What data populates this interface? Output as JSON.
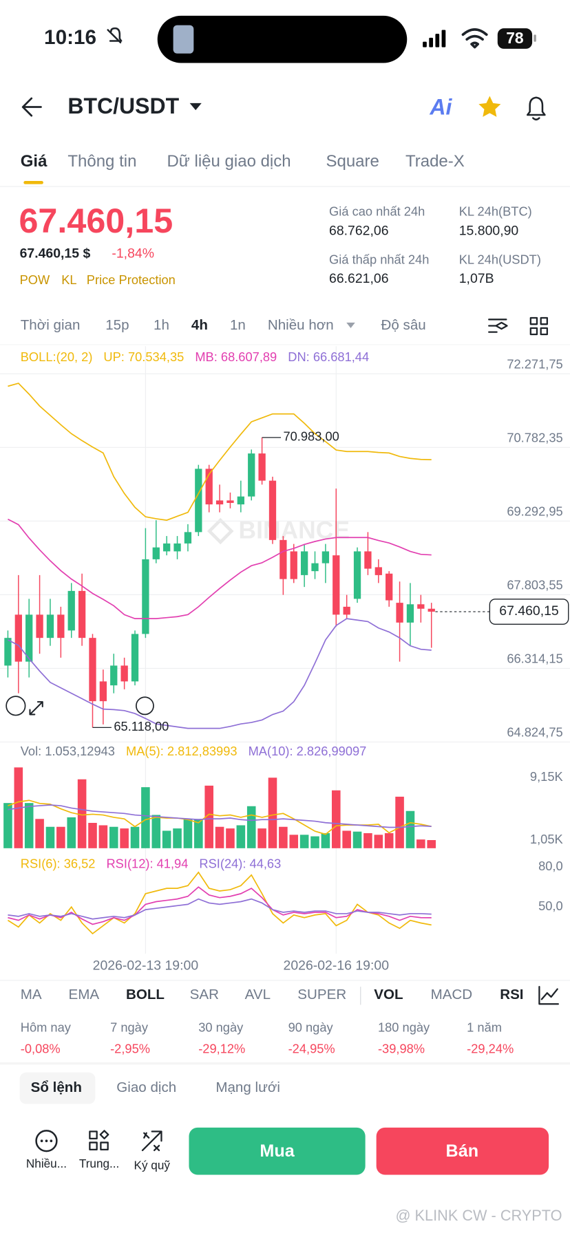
{
  "status_bar": {
    "time": "10:16",
    "battery": "78"
  },
  "header": {
    "title": "BTC/USDT",
    "ai": "Ai"
  },
  "tabs": [
    "Giá",
    "Thông tin",
    "Dữ liệu giao dịch",
    "Square",
    "Trade-X"
  ],
  "price": {
    "last": "67.460,15",
    "usd": "67.460,15 $",
    "change": "-1,84%",
    "tags": [
      "POW",
      "KL",
      "Price Protection"
    ]
  },
  "stats": [
    {
      "label": "Giá cao nhất 24h",
      "value": "68.762,06"
    },
    {
      "label": "KL 24h(BTC)",
      "value": "15.800,90"
    },
    {
      "label": "Giá thấp nhất 24h",
      "value": "66.621,06"
    },
    {
      "label": "KL 24h(USDT)",
      "value": "1,07B"
    }
  ],
  "intervals": [
    "Thời gian",
    "15p",
    "1h",
    "4h",
    "1n",
    "Nhiều hơn",
    "Độ sâu"
  ],
  "chart_data": [
    {
      "type": "candlestick",
      "indicator": "BOLL:(20, 2)",
      "indicator_color": "#f0b90b",
      "watermark": "BINANCE",
      "up_color": "#2ebd85",
      "down_color": "#f6465d",
      "grid": true,
      "ylim": [
        64777,
        72702
      ],
      "yticks": [
        {
          "value": 72271.75,
          "label": "72.271,75"
        },
        {
          "value": 70782.35,
          "label": "70.782,35"
        },
        {
          "value": 69292.95,
          "label": "69.292,95"
        },
        {
          "value": 67803.55,
          "label": "67.803,55"
        },
        {
          "value": 66314.15,
          "label": "66.314,15"
        },
        {
          "value": 64824.75,
          "label": "64.824,75"
        }
      ],
      "open": [
        66370,
        67400,
        66450,
        67400,
        66930,
        67400,
        67080,
        67880,
        66930,
        66050,
        65970,
        66370,
        66050,
        67010,
        68520,
        68680,
        68680,
        68840,
        69070,
        70350,
        69710,
        69710,
        69630,
        69790,
        70660,
        70110,
        68910,
        68680,
        68200,
        68280,
        68440,
        68600,
        67560,
        67720,
        68680,
        68360,
        68230,
        67640,
        67240,
        67610,
        67520
      ],
      "high": [
        67080,
        68200,
        67720,
        68200,
        67720,
        67560,
        68040,
        68230,
        67010,
        66290,
        66610,
        66530,
        67080,
        69150,
        69310,
        68990,
        68990,
        69230,
        70430,
        70430,
        70030,
        69870,
        70110,
        70740,
        70983,
        70190,
        68990,
        68830,
        68830,
        68680,
        68830,
        69950,
        67800,
        68760,
        69070,
        68520,
        68280,
        68070,
        68040,
        67800,
        67640
      ],
      "low": [
        66130,
        65810,
        66130,
        66610,
        66770,
        66530,
        66930,
        66770,
        65118,
        65180,
        65810,
        65890,
        65970,
        66930,
        68440,
        68600,
        68520,
        68680,
        68990,
        69470,
        69470,
        69550,
        69470,
        69710,
        70030,
        68830,
        67800,
        68040,
        67960,
        68120,
        68040,
        67160,
        67320,
        67640,
        68200,
        68040,
        67560,
        66450,
        66770,
        67240,
        66730
      ],
      "close": [
        66930,
        66450,
        67400,
        66930,
        67400,
        66930,
        67880,
        66930,
        65650,
        65650,
        66370,
        66050,
        67010,
        68520,
        68760,
        68840,
        68840,
        69070,
        70350,
        69630,
        69630,
        69660,
        69790,
        70660,
        70110,
        68910,
        68120,
        68120,
        68680,
        68440,
        68680,
        67400,
        67400,
        68680,
        68330,
        68200,
        67690,
        67240,
        67610,
        67520,
        67460.15
      ],
      "max_label": "70.983,00",
      "min_label": "65.118,00",
      "last_label": "67.460,15",
      "series": [
        {
          "name": "UP: 70.534,35",
          "type": "line",
          "color": "#f0b90b",
          "values": [
            72020,
            72080,
            71860,
            71620,
            71430,
            71240,
            71060,
            70920,
            70790,
            70670,
            70190,
            69850,
            69570,
            69380,
            69340,
            69310,
            69390,
            69470,
            69850,
            70240,
            70520,
            70790,
            71050,
            71300,
            71380,
            71460,
            71460,
            71460,
            71270,
            71060,
            70900,
            70730,
            70700,
            70700,
            70700,
            70680,
            70670,
            70600,
            70560,
            70540,
            70534.35
          ]
        },
        {
          "name": "MB: 68.607,89",
          "type": "line",
          "color": "#e23fb0",
          "values": [
            69330,
            69220,
            68950,
            68710,
            68490,
            68290,
            68120,
            67980,
            67830,
            67710,
            67580,
            67400,
            67320,
            67320,
            67320,
            67340,
            67360,
            67400,
            67560,
            67750,
            67930,
            68100,
            68260,
            68390,
            68450,
            68560,
            68680,
            68740,
            68820,
            68880,
            68930,
            68960,
            68960,
            68960,
            68960,
            68900,
            68850,
            68770,
            68680,
            68620,
            68607.89
          ]
        },
        {
          "name": "DN: 66.681,44",
          "type": "line",
          "color": "#8e6fd6",
          "values": [
            66890,
            66780,
            66510,
            66260,
            66030,
            65920,
            65810,
            65700,
            65590,
            65490,
            65480,
            65460,
            65400,
            65300,
            65190,
            65160,
            65130,
            65100,
            65100,
            65100,
            65100,
            65140,
            65190,
            65220,
            65270,
            65380,
            65450,
            65640,
            65970,
            66420,
            66890,
            67180,
            67320,
            67290,
            67260,
            67130,
            67050,
            66930,
            66770,
            66700,
            66681.44
          ]
        }
      ]
    },
    {
      "type": "bar",
      "grid": false,
      "ylim": [
        0,
        11000
      ],
      "yticks": [
        {
          "value": 9150,
          "label": "9,15K"
        },
        {
          "value": 1050,
          "label": "1,05K"
        }
      ],
      "series": [
        {
          "name": "Vol: 1.053,12943",
          "type": "bar",
          "values": [
            5850,
            10460,
            5850,
            3790,
            2770,
            2770,
            4000,
            8920,
            3280,
            2970,
            2770,
            2560,
            2770,
            7900,
            4310,
            2260,
            2560,
            3790,
            3790,
            8100,
            2770,
            2560,
            2970,
            5440,
            2560,
            9130,
            2770,
            1740,
            1740,
            1540,
            1950,
            7490,
            2260,
            2150,
            1950,
            1740,
            1950,
            6670,
            4820,
            1130,
            1053.12943
          ]
        },
        {
          "name": "MA(5): 2.812,83993",
          "type": "line",
          "color": "#f0b90b",
          "values": [
            5500,
            6000,
            6200,
            5800,
            5700,
            5100,
            4600,
            4300,
            4400,
            4300,
            4000,
            3800,
            2800,
            3700,
            4000,
            3900,
            3900,
            3700,
            3300,
            4400,
            4200,
            4300,
            4000,
            4300,
            4000,
            4300,
            4500,
            3800,
            3000,
            2200,
            1800,
            2900,
            3000,
            3000,
            3000,
            3100,
            2000,
            2700,
            3300,
            3100,
            2812.83993
          ]
        },
        {
          "name": "MA(10): 2.826,99097",
          "type": "line",
          "color": "#8e6fd6",
          "values": [
            5000,
            5200,
            5400,
            5500,
            5600,
            5500,
            5200,
            5000,
            4800,
            4700,
            4600,
            4500,
            4300,
            4200,
            4100,
            4000,
            3900,
            3800,
            3700,
            3800,
            3800,
            3900,
            3700,
            3600,
            3700,
            3700,
            3800,
            3700,
            3600,
            3500,
            3300,
            3200,
            3100,
            3000,
            2900,
            2800,
            2700,
            2700,
            2800,
            2900,
            2826.99097
          ]
        }
      ]
    },
    {
      "type": "line",
      "grid": false,
      "ylim": [
        15,
        87
      ],
      "yticks": [
        {
          "value": 80,
          "label": "80,0"
        },
        {
          "value": 50,
          "label": "50,0"
        }
      ],
      "categories": [
        null,
        null,
        null,
        null,
        null,
        null,
        null,
        null,
        null,
        null,
        null,
        null,
        null,
        "2026-02-13 19:00",
        null,
        null,
        null,
        null,
        null,
        null,
        null,
        null,
        null,
        null,
        null,
        null,
        null,
        null,
        null,
        null,
        null,
        "2026-02-16 19:00",
        null,
        null,
        null,
        null,
        null,
        null,
        null,
        null,
        null
      ],
      "series": [
        {
          "name": "RSI(6): 36,52",
          "color": "#f0b90b",
          "values": [
            40,
            35,
            44,
            38,
            45,
            40,
            50,
            38,
            30,
            36,
            42,
            38,
            45,
            60,
            62,
            64,
            64,
            66,
            76,
            64,
            62,
            63,
            66,
            74,
            60,
            45,
            38,
            44,
            42,
            44,
            45,
            36,
            40,
            52,
            46,
            44,
            38,
            34,
            40,
            38,
            36.52
          ]
        },
        {
          "name": "RSI(12): 41,94",
          "color": "#e23fb0",
          "values": [
            42,
            40,
            44,
            41,
            44,
            42,
            46,
            41,
            37,
            39,
            42,
            40,
            44,
            52,
            54,
            55,
            56,
            58,
            65,
            59,
            57,
            58,
            60,
            64,
            57,
            48,
            44,
            46,
            45,
            46,
            46,
            42,
            43,
            48,
            46,
            45,
            43,
            40,
            43,
            42,
            41.94
          ]
        },
        {
          "name": "RSI(24): 44,63",
          "color": "#8e6fd6",
          "values": [
            44,
            43,
            45,
            43,
            44,
            43,
            45,
            43,
            41,
            42,
            43,
            42,
            44,
            48,
            49,
            50,
            51,
            52,
            56,
            53,
            52,
            53,
            54,
            56,
            53,
            48,
            46,
            47,
            46,
            47,
            47,
            45,
            45,
            47,
            46,
            46,
            45,
            44,
            45,
            45,
            44.63
          ]
        }
      ]
    }
  ],
  "indicators": [
    "MA",
    "EMA",
    "BOLL",
    "SAR",
    "AVL",
    "SUPER",
    "VOL",
    "MACD",
    "RSI"
  ],
  "performance": [
    {
      "label": "Hôm nay",
      "value": "-0,08%"
    },
    {
      "label": "7 ngày",
      "value": "-2,95%"
    },
    {
      "label": "30 ngày",
      "value": "-29,12%"
    },
    {
      "label": "90 ngày",
      "value": "-24,95%"
    },
    {
      "label": "180 ngày",
      "value": "-39,98%"
    },
    {
      "label": "1 năm",
      "value": "-29,24%"
    }
  ],
  "book_tabs": [
    "Sổ lệnh",
    "Giao dịch",
    "Mạng lưới"
  ],
  "actions": [
    "Nhiều...",
    "Trung...",
    "Ký quỹ"
  ],
  "buttons": {
    "buy": "Mua",
    "sell": "Bán"
  },
  "watermark": "@ KLINK CW - CRYPTO"
}
